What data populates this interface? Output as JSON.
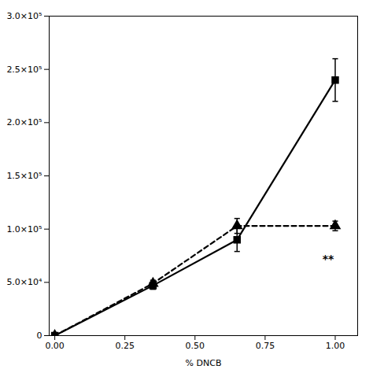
{
  "chart_data": {
    "type": "line",
    "xlabel": "% DNCB",
    "xlim": [
      -0.02,
      1.08
    ],
    "xticks": [
      {
        "value": 0.0,
        "label": "0.00"
      },
      0.25,
      {
        "value": 0.5,
        "label": "0.50"
      },
      0.75,
      {
        "value": 1.0,
        "label": "1.00"
      }
    ],
    "ylim": [
      0,
      300000
    ],
    "yticks": [
      0,
      {
        "value": 50000,
        "label": "5.0×10⁴"
      },
      {
        "value": 100000,
        "label": "1.0×10⁵"
      },
      {
        "value": 150000,
        "label": "1.5×10⁵"
      },
      {
        "value": 200000,
        "label": "2.0×10⁵"
      },
      {
        "value": 250000,
        "label": "2.5×10⁵"
      },
      {
        "value": 300000,
        "label": "3.0×10⁵"
      }
    ],
    "series": [
      {
        "color": "#000000",
        "marker": "square",
        "line_style": "solid",
        "x": [
          0.0,
          0.35,
          0.65,
          1.0
        ],
        "values": [
          0,
          47000,
          90000,
          240000
        ],
        "yerr": [
          0,
          3500,
          11000,
          20000
        ]
      },
      {
        "color": "#000000",
        "marker": "triangle",
        "line_style": "dashed",
        "x": [
          0.0,
          0.35,
          0.65,
          1.0
        ],
        "values": [
          0,
          49000,
          103000,
          103000
        ],
        "yerr": [
          0,
          3000,
          7000,
          4500
        ]
      }
    ],
    "annotations": [
      {
        "text": "**",
        "x": 0.975,
        "y": 72000,
        "color": "#000000"
      }
    ]
  }
}
